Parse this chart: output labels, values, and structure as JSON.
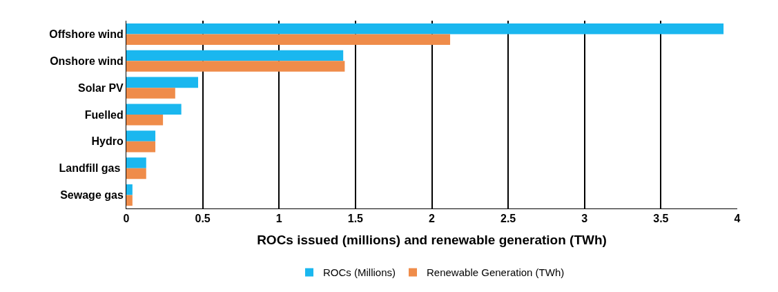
{
  "chart_data": {
    "type": "bar",
    "orientation": "horizontal",
    "xlabel": "ROCs issued (millions) and renewable generation (TWh)",
    "categories": [
      "Offshore wind",
      "Onshore wind",
      "Solar PV",
      "Fuelled",
      "Hydro",
      "Landfill gas ",
      "Sewage gas"
    ],
    "series": [
      {
        "name": "ROCs (Millions)",
        "color": "#1ab7ef",
        "values": [
          3.91,
          1.42,
          0.47,
          0.36,
          0.19,
          0.13,
          0.04
        ]
      },
      {
        "name": "Renewable Generation (TWh)",
        "color": "#ef8c4a",
        "values": [
          2.12,
          1.43,
          0.32,
          0.24,
          0.19,
          0.13,
          0.04
        ]
      }
    ],
    "xlim": [
      0,
      4
    ],
    "xticks": [
      0,
      {
        "value": 0.5,
        "label": "0.5"
      },
      1,
      {
        "value": 1.5,
        "label": "1.5"
      },
      2,
      {
        "value": 2.5,
        "label": "2.5"
      },
      3,
      {
        "value": 3.5,
        "label": "3.5"
      },
      4
    ],
    "grid": "x",
    "legend": "bottom"
  }
}
